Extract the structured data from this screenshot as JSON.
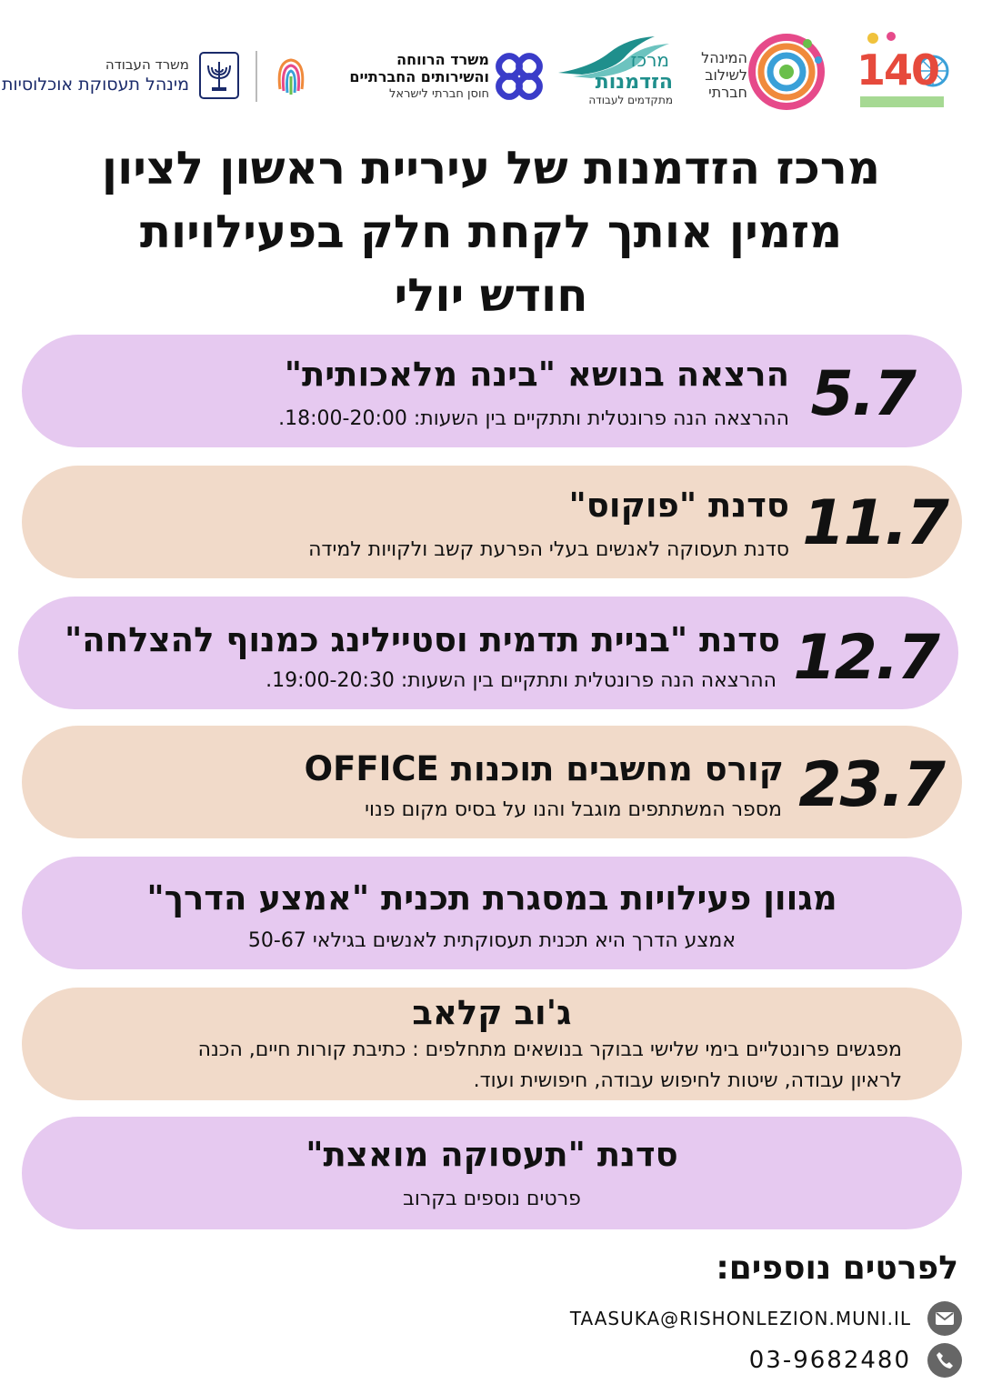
{
  "header": {
    "ministry_labor_line1": "משרד העבודה",
    "ministry_labor_line2": "מינהל תעסוקת אוכלוסיות",
    "ministry_welfare_line1": "משרד הרווחה",
    "ministry_welfare_line2": "והשירותים החברתיים",
    "ministry_welfare_line3": "חוסן חברתי לישראל",
    "merkaz_line1": "מרכז",
    "merkaz_line2": "הזדמנות",
    "merkaz_line3": "מתקדמים לעבודה",
    "minhal_line1": "המינהל",
    "minhal_line2": "לשילוב",
    "minhal_line3": "חברתי",
    "anniversary_number": "140"
  },
  "title": {
    "line1": "מרכז הזדמנות של עיריית ראשון לציון",
    "line2": "מזמין אותך לקחת חלק בפעילויות",
    "line3": "חודש יולי"
  },
  "events": [
    {
      "date": "5.7",
      "headline": "הרצאה בנושא \"בינה מלאכותית\"",
      "sub": "ההרצאה הנה פרונטלית ותתקיים בין השעות: 18:00-20:00."
    },
    {
      "date": "11.7",
      "headline": "סדנת \"פוקוס\"",
      "sub": "סדנת תעסוקה לאנשים בעלי הפרעת קשב ולקויות למידה"
    },
    {
      "date": "12.7",
      "headline": "סדנת \"בניית תדמית וסטיילינג כמנוף להצלחה\"",
      "sub": "ההרצאה הנה פרונטלית ותתקיים בין השעות: 19:00-20:30."
    },
    {
      "date": "23.7",
      "headline": "קורס מחשבים תוכנות OFFICE",
      "sub": "מספר המשתתפים מוגבל והנו על בסיס מקום פנוי"
    },
    {
      "headline": "מגוון פעילויות במסגרת תכנית \"אמצע הדרך\"",
      "sub": "אמצע הדרך היא תכנית תעסוקתית לאנשים בגילאי 50-67"
    },
    {
      "headline": "ג'וב קלאב",
      "sub_line1": "מפגשים פרונטליים בימי שלישי בבוקר בנושאים מתחלפים : כתיבת קורות חיים, הכנה",
      "sub_line2": "לראיון עבודה, שיטות לחיפוש עבודה, חיפושית ועוד."
    },
    {
      "headline": "סדנת \"תעסוקה מואצת\"",
      "sub": "פרטים נוספים בקרוב"
    }
  ],
  "contact": {
    "title": "לפרטים נוספים:",
    "email": "TAASUKA@RISHONLEZION.MUNI.IL",
    "phone": "03-9682480"
  },
  "icons": [
    "menorah-emblem-icon",
    "fingerprint-logo-icon",
    "welfare-knot-logo-icon",
    "wave-logo-icon",
    "spiral-logo-icon",
    "anniversary-logo-icon",
    "email-icon",
    "phone-icon"
  ],
  "colors": {
    "purple_row": "#e6c9f0",
    "peach_row": "#f1dac9",
    "merkaz_teal": "#1f8f8c",
    "welfare_blue": "#3a3cc9"
  }
}
